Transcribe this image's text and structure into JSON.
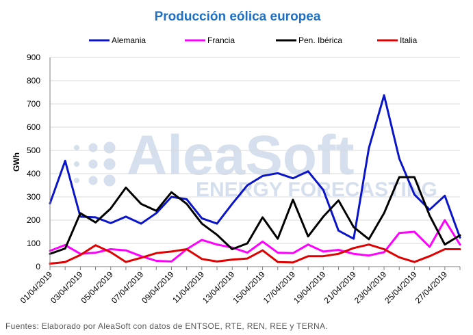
{
  "chart_data": {
    "type": "line",
    "title": "Producción eólica europea",
    "xlabel": "",
    "ylabel": "GWh",
    "ylim": [
      0,
      900
    ],
    "yticks": [
      "0",
      "100",
      "200",
      "300",
      "400",
      "500",
      "600",
      "700",
      "800",
      "900"
    ],
    "grid": "horizontal",
    "legend_position": "top",
    "x": [
      "01/04/2019",
      "02/04/2019",
      "03/04/2019",
      "04/04/2019",
      "05/04/2019",
      "06/04/2019",
      "07/04/2019",
      "08/04/2019",
      "09/04/2019",
      "10/04/2019",
      "11/04/2019",
      "12/04/2019",
      "13/04/2019",
      "14/04/2019",
      "15/04/2019",
      "16/04/2019",
      "17/04/2019",
      "18/04/2019",
      "19/04/2019",
      "20/04/2019",
      "21/04/2019",
      "22/04/2019",
      "23/04/2019",
      "24/04/2019",
      "25/04/2019",
      "26/04/2019",
      "27/04/2019",
      "28/04/2019"
    ],
    "xtick_labels": [
      "01/04/2019",
      "03/04/2019",
      "05/04/2019",
      "07/04/2019",
      "09/04/2019",
      "11/04/2019",
      "13/04/2019",
      "15/04/2019",
      "17/04/2019",
      "19/04/2019",
      "21/04/2019",
      "23/04/2019",
      "25/04/2019",
      "27/04/2019"
    ],
    "series": [
      {
        "name": "Alemania",
        "color": "#0a14c8",
        "values": [
          272,
          455,
          215,
          212,
          187,
          215,
          185,
          230,
          300,
          290,
          208,
          185,
          270,
          350,
          390,
          402,
          380,
          410,
          330,
          155,
          120,
          510,
          737,
          465,
          310,
          245,
          305,
          125
        ]
      },
      {
        "name": "Francia",
        "color": "#ff00ff",
        "values": [
          68,
          93,
          55,
          60,
          75,
          70,
          45,
          25,
          22,
          75,
          115,
          95,
          82,
          60,
          108,
          60,
          58,
          95,
          65,
          72,
          55,
          48,
          62,
          145,
          150,
          85,
          200,
          95
        ]
      },
      {
        "name": "Pen. Ibérica",
        "color": "#000000",
        "values": [
          55,
          78,
          230,
          190,
          250,
          340,
          270,
          240,
          320,
          270,
          185,
          137,
          75,
          100,
          212,
          120,
          288,
          130,
          215,
          285,
          170,
          118,
          230,
          385,
          385,
          220,
          95,
          135
        ]
      },
      {
        "name": "Italia",
        "color": "#e00000",
        "values": [
          13,
          20,
          50,
          92,
          62,
          20,
          38,
          58,
          65,
          75,
          33,
          22,
          30,
          35,
          70,
          20,
          18,
          45,
          45,
          55,
          80,
          95,
          75,
          40,
          20,
          45,
          75,
          75
        ]
      }
    ]
  },
  "watermark": {
    "brand": "AleaSoft",
    "tagline": "ENERGY FORECASTING"
  },
  "source_note": "Fuentes: Elaborado por AleaSoft con datos de ENTSOE, RTE, REN, REE y TERNA.",
  "colors": {
    "title": "#1f6fc5",
    "grid": "#d9d9d9",
    "axis": "#7f7f7f"
  }
}
